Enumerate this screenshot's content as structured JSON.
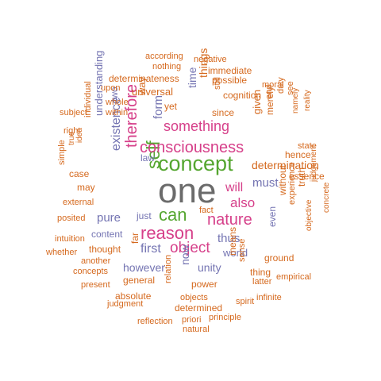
{
  "colors": {
    "gray": "#6b6b6b",
    "green": "#55a630",
    "magenta": "#d6408a",
    "slate": "#7474b2",
    "orange": "#d5691e"
  },
  "words": [
    {
      "text": "one",
      "color": "gray",
      "rotate": false
    },
    {
      "text": "concept",
      "color": "green",
      "rotate": false
    },
    {
      "text": "self",
      "color": "green",
      "rotate": true
    },
    {
      "text": "can",
      "color": "green",
      "rotate": false
    },
    {
      "text": "consciousness",
      "color": "magenta",
      "rotate": false
    },
    {
      "text": "reason",
      "color": "magenta",
      "rotate": false
    },
    {
      "text": "therefore",
      "color": "magenta",
      "rotate": true
    },
    {
      "text": "something",
      "color": "magenta",
      "rotate": false
    },
    {
      "text": "nature",
      "color": "magenta",
      "rotate": false
    },
    {
      "text": "object",
      "color": "magenta",
      "rotate": false
    },
    {
      "text": "also",
      "color": "magenta",
      "rotate": false
    },
    {
      "text": "will",
      "color": "magenta",
      "rotate": false
    },
    {
      "text": "existence",
      "color": "slate",
      "rotate": true
    },
    {
      "text": "form",
      "color": "slate",
      "rotate": true
    },
    {
      "text": "time",
      "color": "slate",
      "rotate": true
    },
    {
      "text": "must",
      "color": "slate",
      "rotate": false
    },
    {
      "text": "thus",
      "color": "slate",
      "rotate": false
    },
    {
      "text": "first",
      "color": "slate",
      "rotate": false
    },
    {
      "text": "pure",
      "color": "slate",
      "rotate": false
    },
    {
      "text": "unity",
      "color": "slate",
      "rotate": false
    },
    {
      "text": "however",
      "color": "slate",
      "rotate": false
    },
    {
      "text": "world",
      "color": "slate",
      "rotate": false
    },
    {
      "text": "now",
      "color": "slate",
      "rotate": true
    },
    {
      "text": "understanding",
      "color": "slate",
      "rotate": true
    },
    {
      "text": "even",
      "color": "slate",
      "rotate": true
    },
    {
      "text": "law",
      "color": "slate",
      "rotate": false
    },
    {
      "text": "just",
      "color": "slate",
      "rotate": false
    },
    {
      "text": "content",
      "color": "slate",
      "rotate": false
    },
    {
      "text": "two",
      "color": "slate",
      "rotate": true
    },
    {
      "text": "according",
      "color": "orange",
      "rotate": false
    },
    {
      "text": "negative",
      "color": "orange",
      "rotate": false
    },
    {
      "text": "nothing",
      "color": "orange",
      "rotate": false
    },
    {
      "text": "immediate",
      "color": "orange",
      "rotate": false
    },
    {
      "text": "determinateness",
      "color": "orange",
      "rotate": false
    },
    {
      "text": "things",
      "color": "orange",
      "rotate": true
    },
    {
      "text": "possible",
      "color": "orange",
      "rotate": false
    },
    {
      "text": "upon",
      "color": "orange",
      "rotate": false
    },
    {
      "text": "moral",
      "color": "orange",
      "rotate": false
    },
    {
      "text": "universal",
      "color": "orange",
      "rotate": false
    },
    {
      "text": "way",
      "color": "orange",
      "rotate": true
    },
    {
      "text": "still",
      "color": "orange",
      "rotate": true
    },
    {
      "text": "cognition",
      "color": "orange",
      "rotate": false
    },
    {
      "text": "end",
      "color": "orange",
      "rotate": true
    },
    {
      "text": "duty",
      "color": "orange",
      "rotate": true
    },
    {
      "text": "see",
      "color": "orange",
      "rotate": true
    },
    {
      "text": "whole",
      "color": "orange",
      "rotate": false
    },
    {
      "text": "yet",
      "color": "orange",
      "rotate": false
    },
    {
      "text": "since",
      "color": "orange",
      "rotate": false
    },
    {
      "text": "namely",
      "color": "orange",
      "rotate": true
    },
    {
      "text": "subject",
      "color": "orange",
      "rotate": false
    },
    {
      "text": "within",
      "color": "orange",
      "rotate": false
    },
    {
      "text": "reality",
      "color": "orange",
      "rotate": true
    },
    {
      "text": "given",
      "color": "orange",
      "rotate": true
    },
    {
      "text": "merely",
      "color": "orange",
      "rotate": true
    },
    {
      "text": "right",
      "color": "orange",
      "rotate": false
    },
    {
      "text": "individual",
      "color": "orange",
      "rotate": true
    },
    {
      "text": "state",
      "color": "orange",
      "rotate": false
    },
    {
      "text": "true",
      "color": "orange",
      "rotate": true
    },
    {
      "text": "idea",
      "color": "orange",
      "rotate": true
    },
    {
      "text": "hence",
      "color": "orange",
      "rotate": false
    },
    {
      "text": "determination",
      "color": "orange",
      "rotate": false
    },
    {
      "text": "case",
      "color": "orange",
      "rotate": false
    },
    {
      "text": "essence",
      "color": "orange",
      "rotate": false
    },
    {
      "text": "simple",
      "color": "orange",
      "rotate": true
    },
    {
      "text": "may",
      "color": "orange",
      "rotate": false
    },
    {
      "text": "truth",
      "color": "orange",
      "rotate": true
    },
    {
      "text": "judgement",
      "color": "orange",
      "rotate": true
    },
    {
      "text": "without",
      "color": "orange",
      "rotate": true
    },
    {
      "text": "external",
      "color": "orange",
      "rotate": false
    },
    {
      "text": "fact",
      "color": "orange",
      "rotate": false
    },
    {
      "text": "experience",
      "color": "orange",
      "rotate": true
    },
    {
      "text": "posited",
      "color": "orange",
      "rotate": false
    },
    {
      "text": "concrete",
      "color": "orange",
      "rotate": true
    },
    {
      "text": "intuition",
      "color": "orange",
      "rotate": false
    },
    {
      "text": "thought",
      "color": "orange",
      "rotate": false
    },
    {
      "text": "far",
      "color": "orange",
      "rotate": true
    },
    {
      "text": "whether",
      "color": "orange",
      "rotate": false
    },
    {
      "text": "ground",
      "color": "orange",
      "rotate": false
    },
    {
      "text": "objective",
      "color": "orange",
      "rotate": true
    },
    {
      "text": "another",
      "color": "orange",
      "rotate": false
    },
    {
      "text": "concepts",
      "color": "orange",
      "rotate": false
    },
    {
      "text": "means",
      "color": "orange",
      "rotate": true
    },
    {
      "text": "thing",
      "color": "orange",
      "rotate": false
    },
    {
      "text": "general",
      "color": "orange",
      "rotate": false
    },
    {
      "text": "sense",
      "color": "orange",
      "rotate": true
    },
    {
      "text": "latter",
      "color": "orange",
      "rotate": false
    },
    {
      "text": "empirical",
      "color": "orange",
      "rotate": false
    },
    {
      "text": "present",
      "color": "orange",
      "rotate": false
    },
    {
      "text": "power",
      "color": "orange",
      "rotate": false
    },
    {
      "text": "absolute",
      "color": "orange",
      "rotate": false
    },
    {
      "text": "relation",
      "color": "orange",
      "rotate": true
    },
    {
      "text": "infinite",
      "color": "orange",
      "rotate": false
    },
    {
      "text": "judgment",
      "color": "orange",
      "rotate": false
    },
    {
      "text": "objects",
      "color": "orange",
      "rotate": false
    },
    {
      "text": "spirit",
      "color": "orange",
      "rotate": false
    },
    {
      "text": "determined",
      "color": "orange",
      "rotate": false
    },
    {
      "text": "reflection",
      "color": "orange",
      "rotate": false
    },
    {
      "text": "priori",
      "color": "orange",
      "rotate": false
    },
    {
      "text": "principle",
      "color": "orange",
      "rotate": false
    },
    {
      "text": "natural",
      "color": "orange",
      "rotate": false
    }
  ]
}
